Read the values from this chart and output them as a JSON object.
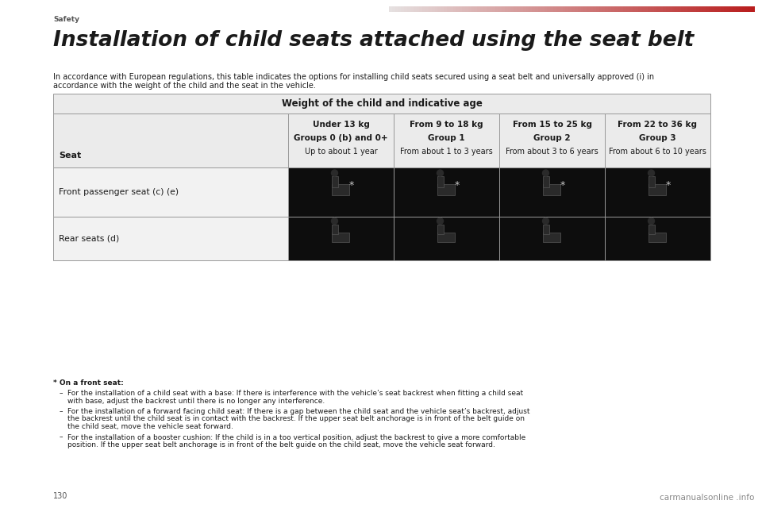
{
  "title": "Installation of child seats attached using the seat belt",
  "section_label": "Safety",
  "intro_line1": "In accordance with European regulations, this table indicates the options for installing child seats secured using a seat belt and universally approved (i) in",
  "intro_line2": "accordance with the weight of the child and the seat in the vehicle.",
  "table_header_main": "Weight of the child and indicative age",
  "col0_header": "Seat",
  "col_headers": [
    "Under 13 kg\nGroups 0 (b) and 0+\nUp to about 1 year",
    "From 9 to 18 kg\nGroup 1\nFrom about 1 to 3 years",
    "From 15 to 25 kg\nGroup 2\nFrom about 3 to 6 years",
    "From 22 to 36 kg\nGroup 3\nFrom about 6 to 10 years"
  ],
  "row1_seat": "Front passenger seat (c) (e)",
  "row2_seat": "Rear seats (d)",
  "footnote_title": "* On a front seat:",
  "footnote1": "For the installation of a child seat with a base: If there is interference with the vehicle’s seat backrest when fitting a child seat with base, adjust the backrest until there is no longer any interference.",
  "footnote2": "For the installation of a forward facing child seat: If there is a gap between the child seat and the vehicle seat’s backrest, adjust the backrest until the child seat is in contact with the backrest. If the upper seat belt anchorage is in front of the belt guide on the child seat, move the vehicle seat forward.",
  "footnote3": "For the installation of a booster cushion: If the child is in a too vertical position, adjust the backrest to give a more comfortable position. If the upper seat belt anchorage is in front of the belt guide on the child seat, move the vehicle seat forward.",
  "page_number": "130",
  "bg_color": "#ffffff",
  "cell_dark_bg": "#0d0d0d",
  "cell_light_bg": "#f2f2f2",
  "header_row_bg": "#ebebeb",
  "border_color": "#999999",
  "title_color": "#1a1a1a",
  "body_text_color": "#1a1a1a",
  "footnote_text_color": "#1a1a1a",
  "page_num_color": "#555555",
  "watermark_color": "#888888"
}
